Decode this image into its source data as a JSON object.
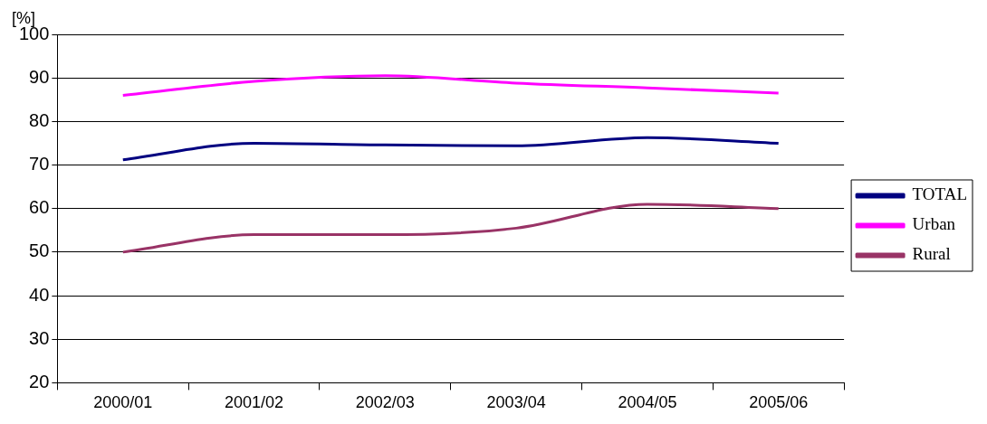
{
  "chart_data": {
    "type": "line",
    "ylabel": "[%]",
    "categories": [
      "2000/01",
      "2001/02",
      "2002/03",
      "2003/04",
      "2004/05",
      "2005/06"
    ],
    "series": [
      {
        "name": "TOTAL",
        "color": "#000080",
        "values": [
          71.2,
          75,
          74.6,
          74.4,
          76.3,
          75
        ]
      },
      {
        "name": "Urban",
        "color": "#ff00ff",
        "values": [
          86,
          89.2,
          90.5,
          88.8,
          87.7,
          86.5
        ]
      },
      {
        "name": "Rural",
        "color": "#993366",
        "values": [
          50,
          54,
          54,
          55.5,
          61,
          60
        ]
      }
    ],
    "ylim": [
      20,
      100
    ],
    "yticks": [
      20,
      30,
      40,
      50,
      60,
      70,
      80,
      90,
      100
    ],
    "grid": "y",
    "legend": "right",
    "marker": "none",
    "line_style": "solid"
  }
}
